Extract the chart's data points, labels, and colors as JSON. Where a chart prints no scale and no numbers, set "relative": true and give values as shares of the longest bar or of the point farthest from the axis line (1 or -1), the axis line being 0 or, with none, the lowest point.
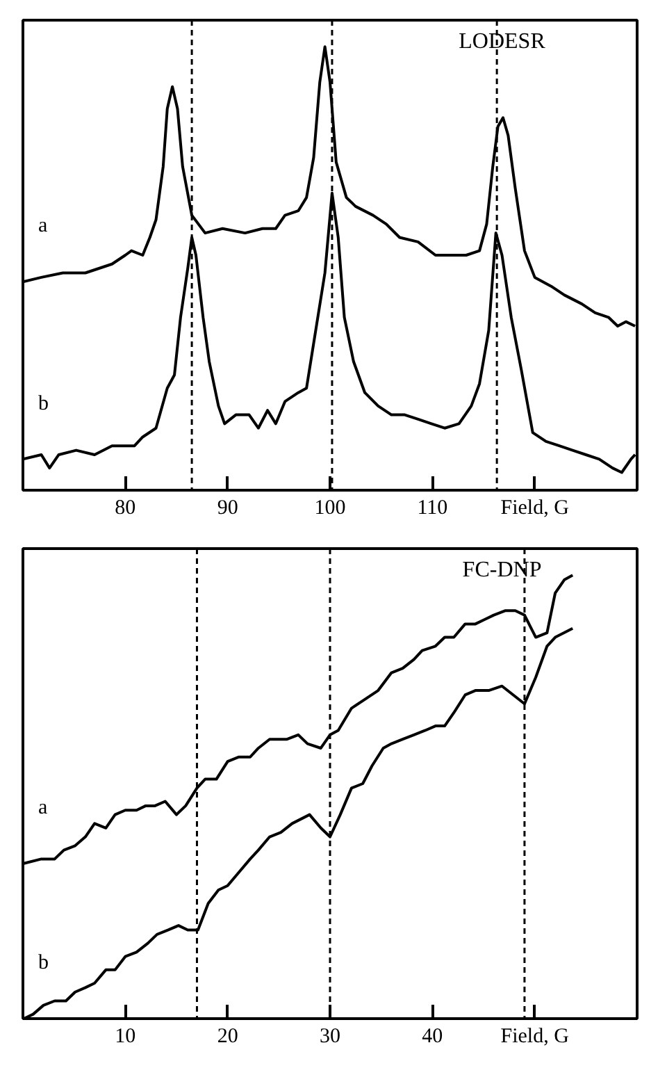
{
  "chart_data": [
    {
      "type": "line",
      "title": "LODESR",
      "relative": true,
      "xlim": [
        70,
        130
      ],
      "xticks": [
        80,
        90,
        100,
        110,
        {
          "value": 120,
          "label": "Field, G"
        }
      ],
      "grid": false,
      "line_style": "solid",
      "marker": "none",
      "series": [
        {
          "name": "a",
          "color": "#000000",
          "x": [
            70.0,
            71.8,
            73.9,
            76.1,
            78.7,
            80.0,
            80.6,
            81.7,
            82.4,
            83.0,
            83.7,
            84.1,
            84.6,
            85.1,
            85.6,
            86.5,
            87.8,
            89.5,
            91.7,
            93.4,
            94.7,
            95.6,
            96.9,
            97.7,
            98.4,
            99.0,
            99.5,
            100.0,
            100.6,
            101.6,
            102.5,
            104.2,
            105.5,
            106.8,
            108.6,
            110.3,
            112.0,
            113.3,
            114.6,
            115.3,
            115.9,
            116.4,
            116.9,
            117.4,
            118.1,
            119.0,
            120.0,
            121.6,
            122.9,
            124.6,
            125.9,
            127.2,
            128.1,
            128.9,
            129.8
          ],
          "values": [
            0.47,
            0.48,
            0.49,
            0.49,
            0.51,
            0.53,
            0.54,
            0.53,
            0.57,
            0.61,
            0.73,
            0.86,
            0.91,
            0.86,
            0.73,
            0.62,
            0.58,
            0.59,
            0.58,
            0.59,
            0.59,
            0.62,
            0.63,
            0.66,
            0.75,
            0.92,
            1.0,
            0.92,
            0.74,
            0.66,
            0.64,
            0.62,
            0.6,
            0.57,
            0.56,
            0.53,
            0.53,
            0.53,
            0.54,
            0.6,
            0.73,
            0.82,
            0.84,
            0.8,
            0.68,
            0.54,
            0.48,
            0.46,
            0.44,
            0.42,
            0.4,
            0.39,
            0.37,
            0.38,
            0.37
          ]
        },
        {
          "name": "b",
          "color": "#000000",
          "x": [
            70.0,
            71.8,
            72.6,
            73.5,
            75.2,
            77.0,
            78.7,
            80.0,
            80.9,
            81.7,
            83.0,
            84.1,
            84.8,
            85.4,
            86.1,
            86.5,
            86.9,
            87.6,
            88.2,
            89.1,
            89.7,
            90.8,
            92.1,
            93.0,
            93.9,
            94.7,
            95.6,
            96.9,
            97.7,
            98.6,
            99.5,
            100.2,
            100.8,
            101.4,
            102.3,
            103.4,
            104.7,
            106.0,
            107.3,
            108.6,
            109.9,
            111.2,
            112.6,
            113.8,
            114.6,
            115.5,
            116.2,
            116.8,
            117.7,
            118.7,
            119.8,
            121.1,
            122.4,
            123.7,
            125.0,
            126.3,
            127.6,
            128.5,
            129.4,
            129.8
          ],
          "values": [
            0.07,
            0.08,
            0.05,
            0.08,
            0.09,
            0.08,
            0.1,
            0.1,
            0.1,
            0.12,
            0.14,
            0.23,
            0.26,
            0.39,
            0.5,
            0.57,
            0.53,
            0.39,
            0.29,
            0.19,
            0.15,
            0.17,
            0.17,
            0.14,
            0.18,
            0.15,
            0.2,
            0.22,
            0.23,
            0.36,
            0.49,
            0.67,
            0.57,
            0.39,
            0.29,
            0.22,
            0.19,
            0.17,
            0.17,
            0.16,
            0.15,
            0.14,
            0.15,
            0.19,
            0.24,
            0.36,
            0.58,
            0.53,
            0.39,
            0.27,
            0.13,
            0.11,
            0.1,
            0.09,
            0.08,
            0.07,
            0.05,
            0.04,
            0.07,
            0.08
          ]
        }
      ],
      "ref_lines": [
        {
          "axis": "x",
          "value": 86.5,
          "color": "#000000",
          "line_style": "dashed"
        },
        {
          "axis": "x",
          "value": 100.2,
          "color": "#000000",
          "line_style": "dashed"
        },
        {
          "axis": "x",
          "value": 116.3,
          "color": "#000000",
          "line_style": "dashed"
        }
      ]
    },
    {
      "type": "line",
      "title": "FC-DNP",
      "relative": true,
      "xlim": [
        0,
        60
      ],
      "xticks": [
        10,
        20,
        30,
        40,
        {
          "value": 50,
          "label": "Field, G"
        }
      ],
      "grid": false,
      "line_style": "solid",
      "marker": "none",
      "series": [
        {
          "name": "a",
          "color": "#000000",
          "x": [
            0.1,
            1.8,
            3.1,
            4.0,
            5.1,
            6.1,
            7.0,
            8.1,
            9.0,
            10.0,
            11.1,
            12.0,
            12.9,
            13.9,
            15.0,
            15.9,
            17.0,
            17.8,
            18.9,
            20.0,
            21.1,
            22.2,
            23.0,
            24.1,
            25.8,
            26.9,
            27.8,
            29.1,
            30.0,
            30.8,
            32.1,
            33.4,
            34.7,
            36.0,
            37.1,
            38.2,
            39.0,
            40.3,
            41.2,
            42.1,
            43.2,
            44.2,
            45.1,
            46.0,
            47.1,
            48.1,
            49.0,
            50.1,
            51.2,
            52.0,
            52.9,
            53.7
          ],
          "values": [
            0.35,
            0.36,
            0.36,
            0.38,
            0.39,
            0.41,
            0.44,
            0.43,
            0.46,
            0.47,
            0.47,
            0.48,
            0.48,
            0.49,
            0.46,
            0.48,
            0.52,
            0.54,
            0.54,
            0.58,
            0.59,
            0.59,
            0.61,
            0.63,
            0.63,
            0.64,
            0.62,
            0.61,
            0.64,
            0.65,
            0.7,
            0.72,
            0.74,
            0.78,
            0.79,
            0.81,
            0.83,
            0.84,
            0.86,
            0.86,
            0.89,
            0.89,
            0.9,
            0.91,
            0.92,
            0.92,
            0.91,
            0.86,
            0.87,
            0.96,
            0.99,
            1.0
          ]
        },
        {
          "name": "b",
          "color": "#000000",
          "x": [
            0.1,
            1.0,
            2.0,
            3.1,
            4.2,
            5.1,
            6.1,
            7.0,
            8.1,
            9.0,
            10.0,
            11.1,
            12.2,
            13.1,
            14.2,
            15.2,
            16.1,
            17.1,
            18.1,
            19.1,
            20.0,
            21.1,
            22.2,
            23.0,
            24.1,
            25.2,
            26.3,
            28.0,
            29.1,
            30.0,
            31.0,
            32.1,
            33.2,
            34.1,
            35.2,
            36.0,
            37.1,
            38.2,
            39.3,
            40.3,
            41.2,
            42.1,
            43.2,
            44.2,
            45.5,
            46.8,
            47.9,
            49.0,
            50.1,
            51.2,
            52.0,
            53.7
          ],
          "values": [
            0.0,
            0.01,
            0.03,
            0.04,
            0.04,
            0.06,
            0.07,
            0.08,
            0.11,
            0.11,
            0.14,
            0.15,
            0.17,
            0.19,
            0.2,
            0.21,
            0.2,
            0.2,
            0.26,
            0.29,
            0.3,
            0.33,
            0.36,
            0.38,
            0.41,
            0.42,
            0.44,
            0.46,
            0.43,
            0.41,
            0.46,
            0.52,
            0.53,
            0.57,
            0.61,
            0.62,
            0.63,
            0.64,
            0.65,
            0.66,
            0.66,
            0.69,
            0.73,
            0.74,
            0.74,
            0.75,
            0.73,
            0.71,
            0.77,
            0.84,
            0.86,
            0.88
          ]
        }
      ],
      "ref_lines": [
        {
          "axis": "x",
          "value": 17,
          "color": "#000000",
          "line_style": "dashed"
        },
        {
          "axis": "x",
          "value": 30,
          "color": "#000000",
          "line_style": "dashed"
        },
        {
          "axis": "x",
          "value": 49,
          "color": "#000000",
          "line_style": "dashed"
        }
      ]
    }
  ]
}
